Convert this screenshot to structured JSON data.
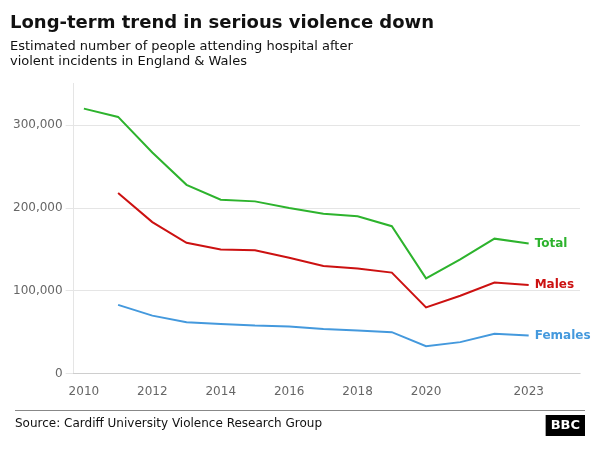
{
  "chart_data": {
    "type": "line",
    "title": "Long-term trend in serious violence down",
    "subtitle": "Estimated number of people attending hospital after\nviolent incidents in England & Wales",
    "source": "Source: Cardiff University Violence Research Group",
    "logo": "BBC",
    "x": [
      2010,
      2011,
      2012,
      2013,
      2014,
      2015,
      2016,
      2017,
      2018,
      2019,
      2020,
      2021,
      2022,
      2023
    ],
    "series": [
      {
        "name": "Total",
        "color": "#2db32d",
        "values": [
          320000,
          310000,
          267000,
          228000,
          210000,
          208000,
          200000,
          193000,
          190000,
          178000,
          115000,
          138000,
          163000,
          157000
        ]
      },
      {
        "name": "Males",
        "color": "#cc1111",
        "values": [
          null,
          218000,
          183000,
          158000,
          150000,
          149000,
          140000,
          130000,
          127000,
          122000,
          80000,
          94000,
          110000,
          107000
        ]
      },
      {
        "name": "Females",
        "color": "#4499dd",
        "values": [
          null,
          83000,
          70000,
          62000,
          60000,
          58000,
          57000,
          54000,
          52000,
          50000,
          33000,
          38000,
          48000,
          46000
        ]
      }
    ],
    "xlim": [
      2009.7,
      2024.5
    ],
    "xticks": [
      2010,
      2012,
      2014,
      2016,
      2018,
      2020,
      2023
    ],
    "ylim": [
      0,
      350000
    ],
    "yticks": [
      0,
      {
        "value": 100000,
        "label": "100,000"
      },
      {
        "value": 200000,
        "label": "200,000"
      },
      {
        "value": 300000,
        "label": "300,000"
      }
    ],
    "grid": "y"
  }
}
